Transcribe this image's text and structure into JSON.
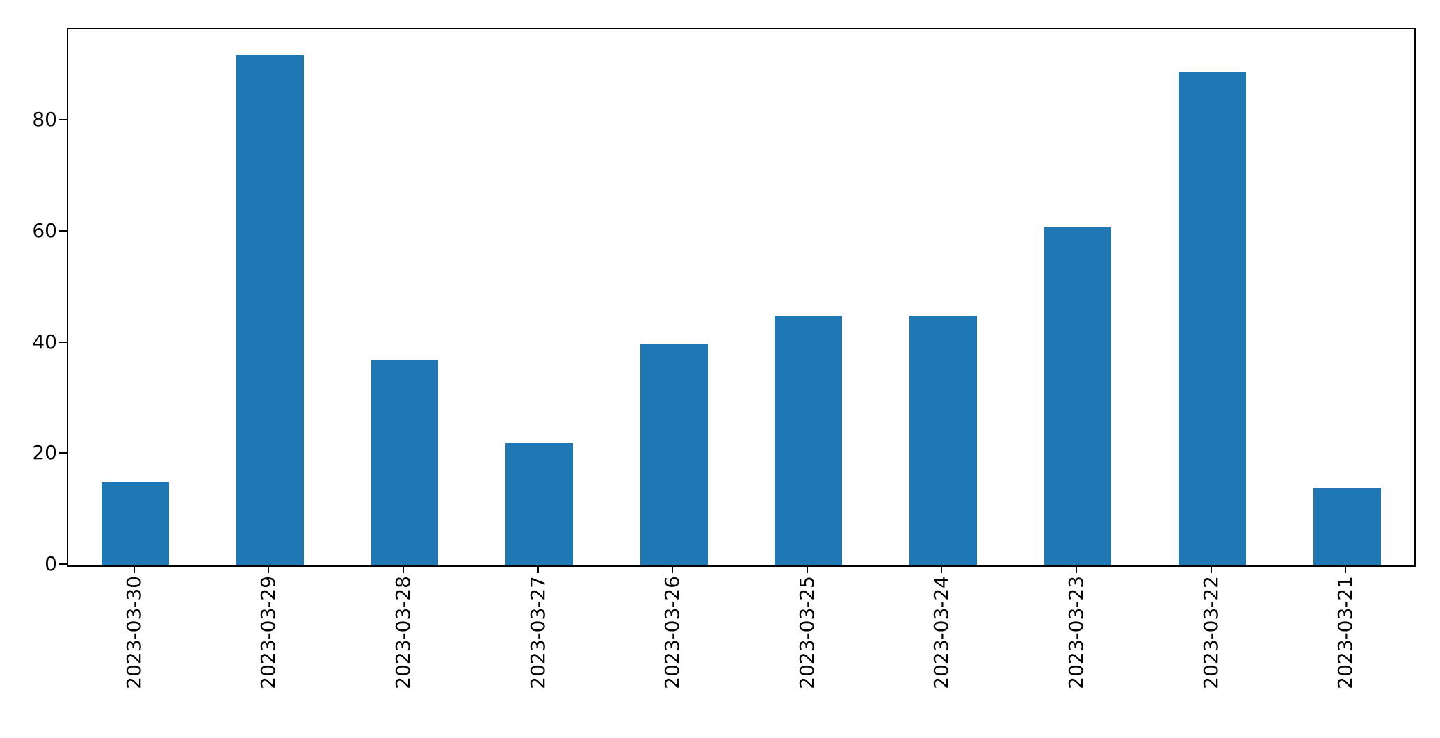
{
  "figure": {
    "background_color": "#ffffff",
    "axis_color": "#000000",
    "bar_color": "#1f77b4"
  },
  "chart_data": {
    "type": "bar",
    "title": "",
    "xlabel": "",
    "ylabel": "",
    "categories": [
      "2023-03-30",
      "2023-03-29",
      "2023-03-28",
      "2023-03-27",
      "2023-03-26",
      "2023-03-25",
      "2023-03-24",
      "2023-03-23",
      "2023-03-22",
      "2023-03-21"
    ],
    "values": [
      15,
      92,
      37,
      22,
      40,
      45,
      45,
      61,
      89,
      14
    ],
    "yticks": [
      0,
      20,
      40,
      60,
      80
    ],
    "ylim": [
      0,
      96.6
    ],
    "grid": false,
    "legend_position": "none",
    "x_tick_rotation_degrees": 90,
    "bar_width_fraction": 0.5
  }
}
